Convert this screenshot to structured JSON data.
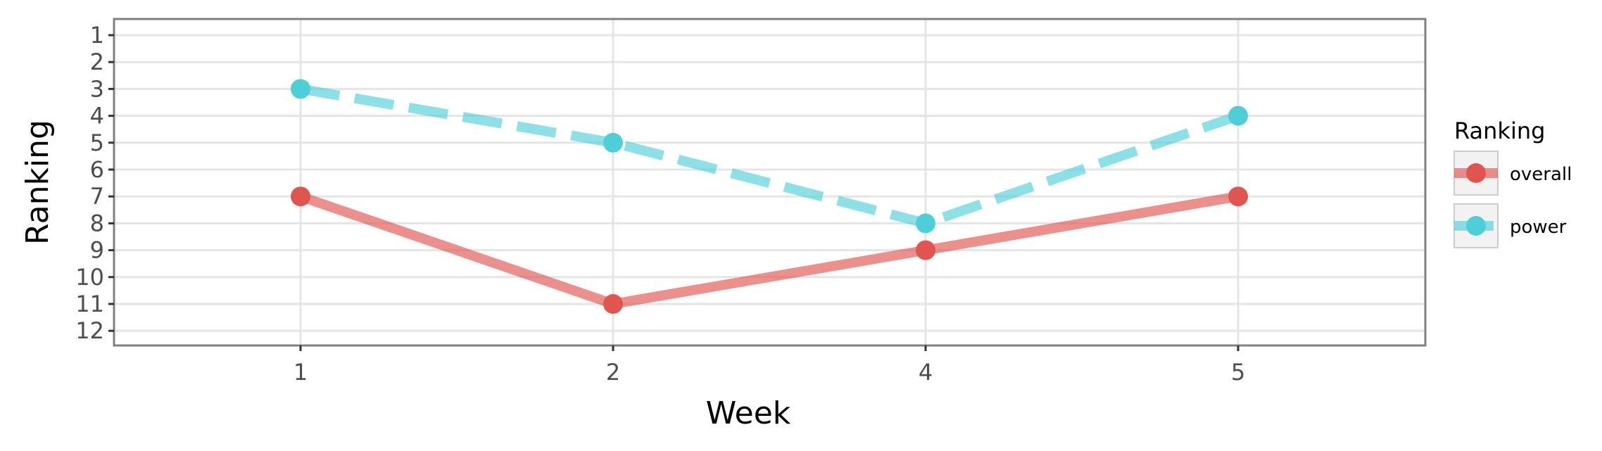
{
  "chart_data": {
    "type": "line",
    "title": "",
    "xlabel": "Week",
    "ylabel": "Ranking",
    "x": [
      1,
      2,
      4,
      5
    ],
    "x_tick_labels": [
      "1",
      "2",
      "4",
      "5"
    ],
    "x_scale": "discrete",
    "y_ticks": [
      1,
      2,
      3,
      4,
      5,
      6,
      7,
      8,
      9,
      10,
      11,
      12
    ],
    "y_tick_labels": [
      "1",
      "2",
      "3",
      "4",
      "5",
      "6",
      "7",
      "8",
      "9",
      "10",
      "11",
      "12"
    ],
    "ylim": [
      1,
      12
    ],
    "y_reversed": true,
    "grid": true,
    "legend": {
      "title": "Ranking",
      "placement": "right"
    },
    "series": [
      {
        "name": "overall",
        "values": [
          7,
          11,
          9,
          7
        ],
        "color": "#e0554f",
        "linestyle": "solid"
      },
      {
        "name": "power",
        "values": [
          3,
          5,
          8,
          4
        ],
        "color": "#4ecfd8",
        "linestyle": "dashed"
      }
    ]
  }
}
